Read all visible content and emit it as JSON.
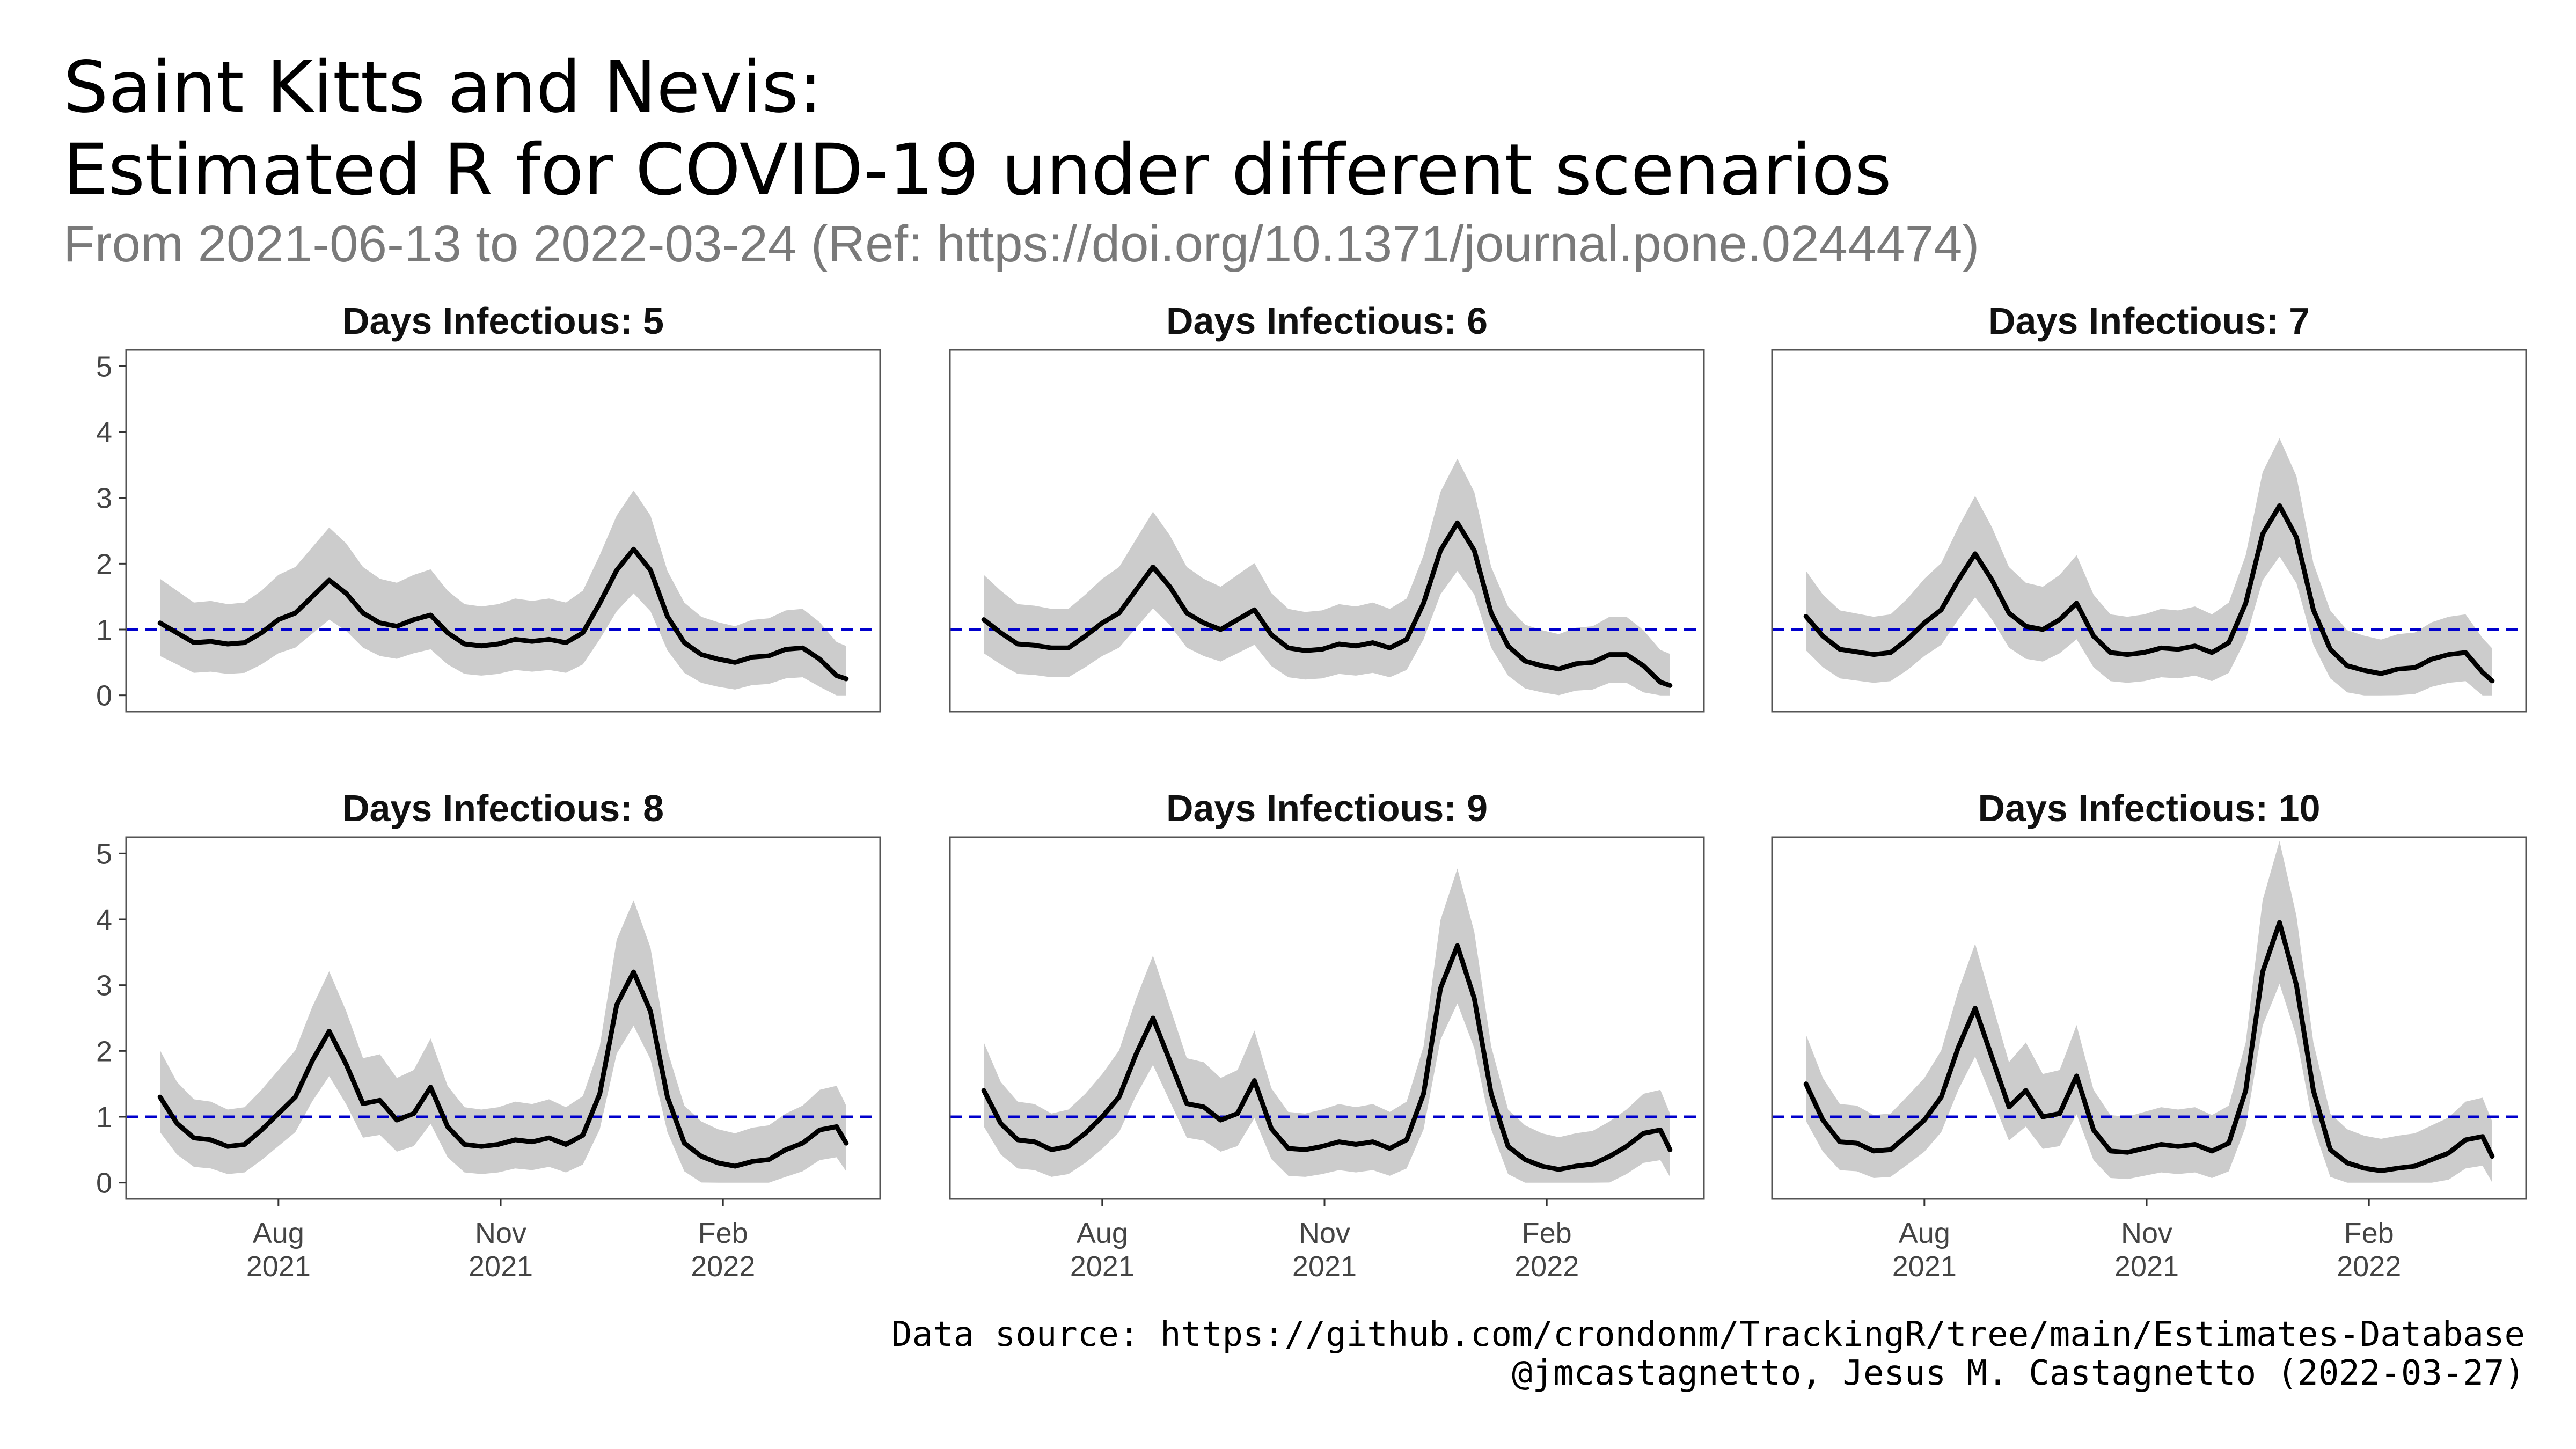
{
  "title_line1": "Saint Kitts and Nevis:",
  "title_line2": "Estimated R for COVID-19 under different scenarios",
  "subtitle": "From 2021-06-13 to 2022-03-24 (Ref: https://doi.org/10.1371/journal.pone.0244474)",
  "caption_line1": "Data source: https://github.com/crondonm/TrackingR/tree/main/Estimates-Database",
  "caption_line2": "@jmcastagnetto, Jesus M. Castagnetto (2022-03-27)",
  "colors": {
    "line": "#000000",
    "ribbon": "#cccccc",
    "reference": "#0000cc",
    "frame": "#555555"
  },
  "chart_data": {
    "type": "line",
    "x_start": "2021-06-13",
    "x_end": "2022-03-24",
    "x_ticks": [
      {
        "date": "2021-08-01",
        "label_month": "Aug",
        "label_year": "2021"
      },
      {
        "date": "2021-11-01",
        "label_month": "Nov",
        "label_year": "2021"
      },
      {
        "date": "2022-02-01",
        "label_month": "Feb",
        "label_year": "2022"
      }
    ],
    "y_ticks": [
      0,
      1,
      2,
      3,
      4,
      5
    ],
    "ylim": [
      0,
      5
    ],
    "reference_line": 1,
    "ribbon": "confidence interval",
    "panels": [
      {
        "label": "Days Infectious: 5",
        "series": [
          [
            "2021-06-13",
            1.1
          ],
          [
            "2021-06-20",
            0.95
          ],
          [
            "2021-06-27",
            0.8
          ],
          [
            "2021-07-04",
            0.82
          ],
          [
            "2021-07-11",
            0.78
          ],
          [
            "2021-07-18",
            0.8
          ],
          [
            "2021-07-25",
            0.95
          ],
          [
            "2021-08-01",
            1.15
          ],
          [
            "2021-08-08",
            1.25
          ],
          [
            "2021-08-15",
            1.5
          ],
          [
            "2021-08-22",
            1.75
          ],
          [
            "2021-08-29",
            1.55
          ],
          [
            "2021-09-05",
            1.25
          ],
          [
            "2021-09-12",
            1.1
          ],
          [
            "2021-09-19",
            1.05
          ],
          [
            "2021-09-26",
            1.15
          ],
          [
            "2021-10-03",
            1.22
          ],
          [
            "2021-10-10",
            0.95
          ],
          [
            "2021-10-17",
            0.78
          ],
          [
            "2021-10-24",
            0.75
          ],
          [
            "2021-10-31",
            0.78
          ],
          [
            "2021-11-07",
            0.85
          ],
          [
            "2021-11-14",
            0.82
          ],
          [
            "2021-11-21",
            0.85
          ],
          [
            "2021-11-28",
            0.8
          ],
          [
            "2021-12-05",
            0.95
          ],
          [
            "2021-12-12",
            1.4
          ],
          [
            "2021-12-19",
            1.9
          ],
          [
            "2021-12-26",
            2.22
          ],
          [
            "2022-01-02",
            1.9
          ],
          [
            "2022-01-09",
            1.2
          ],
          [
            "2022-01-16",
            0.8
          ],
          [
            "2022-01-23",
            0.62
          ],
          [
            "2022-01-30",
            0.55
          ],
          [
            "2022-02-06",
            0.5
          ],
          [
            "2022-02-13",
            0.58
          ],
          [
            "2022-02-20",
            0.6
          ],
          [
            "2022-02-27",
            0.7
          ],
          [
            "2022-03-06",
            0.72
          ],
          [
            "2022-03-13",
            0.55
          ],
          [
            "2022-03-20",
            0.3
          ],
          [
            "2022-03-24",
            0.25
          ]
        ]
      },
      {
        "label": "Days Infectious: 6",
        "series": [
          [
            "2021-06-13",
            1.15
          ],
          [
            "2021-06-20",
            0.95
          ],
          [
            "2021-06-27",
            0.78
          ],
          [
            "2021-07-04",
            0.76
          ],
          [
            "2021-07-11",
            0.72
          ],
          [
            "2021-07-18",
            0.72
          ],
          [
            "2021-07-25",
            0.9
          ],
          [
            "2021-08-01",
            1.1
          ],
          [
            "2021-08-08",
            1.25
          ],
          [
            "2021-08-15",
            1.6
          ],
          [
            "2021-08-22",
            1.95
          ],
          [
            "2021-08-29",
            1.65
          ],
          [
            "2021-09-05",
            1.25
          ],
          [
            "2021-09-12",
            1.1
          ],
          [
            "2021-09-19",
            1.0
          ],
          [
            "2021-09-26",
            1.15
          ],
          [
            "2021-10-03",
            1.3
          ],
          [
            "2021-10-10",
            0.92
          ],
          [
            "2021-10-17",
            0.72
          ],
          [
            "2021-10-24",
            0.68
          ],
          [
            "2021-10-31",
            0.7
          ],
          [
            "2021-11-07",
            0.78
          ],
          [
            "2021-11-14",
            0.75
          ],
          [
            "2021-11-21",
            0.8
          ],
          [
            "2021-11-28",
            0.72
          ],
          [
            "2021-12-05",
            0.85
          ],
          [
            "2021-12-12",
            1.4
          ],
          [
            "2021-12-19",
            2.2
          ],
          [
            "2021-12-26",
            2.62
          ],
          [
            "2022-01-02",
            2.2
          ],
          [
            "2022-01-09",
            1.25
          ],
          [
            "2022-01-16",
            0.75
          ],
          [
            "2022-01-23",
            0.52
          ],
          [
            "2022-01-30",
            0.45
          ],
          [
            "2022-02-06",
            0.4
          ],
          [
            "2022-02-13",
            0.48
          ],
          [
            "2022-02-20",
            0.5
          ],
          [
            "2022-02-27",
            0.62
          ],
          [
            "2022-03-06",
            0.62
          ],
          [
            "2022-03-13",
            0.45
          ],
          [
            "2022-03-20",
            0.2
          ],
          [
            "2022-03-24",
            0.15
          ]
        ]
      },
      {
        "label": "Days Infectious: 7",
        "series": [
          [
            "2021-06-13",
            1.2
          ],
          [
            "2021-06-20",
            0.9
          ],
          [
            "2021-06-27",
            0.7
          ],
          [
            "2021-07-04",
            0.66
          ],
          [
            "2021-07-11",
            0.62
          ],
          [
            "2021-07-18",
            0.65
          ],
          [
            "2021-07-25",
            0.85
          ],
          [
            "2021-08-01",
            1.1
          ],
          [
            "2021-08-08",
            1.3
          ],
          [
            "2021-08-15",
            1.75
          ],
          [
            "2021-08-22",
            2.15
          ],
          [
            "2021-08-29",
            1.75
          ],
          [
            "2021-09-05",
            1.25
          ],
          [
            "2021-09-12",
            1.05
          ],
          [
            "2021-09-19",
            1.0
          ],
          [
            "2021-09-26",
            1.15
          ],
          [
            "2021-10-03",
            1.4
          ],
          [
            "2021-10-10",
            0.9
          ],
          [
            "2021-10-17",
            0.65
          ],
          [
            "2021-10-24",
            0.62
          ],
          [
            "2021-10-31",
            0.65
          ],
          [
            "2021-11-07",
            0.72
          ],
          [
            "2021-11-14",
            0.7
          ],
          [
            "2021-11-21",
            0.75
          ],
          [
            "2021-11-28",
            0.65
          ],
          [
            "2021-12-05",
            0.8
          ],
          [
            "2021-12-12",
            1.4
          ],
          [
            "2021-12-19",
            2.45
          ],
          [
            "2021-12-26",
            2.88
          ],
          [
            "2022-01-02",
            2.4
          ],
          [
            "2022-01-09",
            1.3
          ],
          [
            "2022-01-16",
            0.7
          ],
          [
            "2022-01-23",
            0.45
          ],
          [
            "2022-01-30",
            0.38
          ],
          [
            "2022-02-06",
            0.33
          ],
          [
            "2022-02-13",
            0.4
          ],
          [
            "2022-02-20",
            0.42
          ],
          [
            "2022-02-27",
            0.55
          ],
          [
            "2022-03-06",
            0.62
          ],
          [
            "2022-03-13",
            0.65
          ],
          [
            "2022-03-20",
            0.35
          ],
          [
            "2022-03-24",
            0.22
          ]
        ]
      },
      {
        "label": "Days Infectious: 8",
        "series": [
          [
            "2021-06-13",
            1.3
          ],
          [
            "2021-06-20",
            0.9
          ],
          [
            "2021-06-27",
            0.68
          ],
          [
            "2021-07-04",
            0.65
          ],
          [
            "2021-07-11",
            0.55
          ],
          [
            "2021-07-18",
            0.58
          ],
          [
            "2021-07-25",
            0.8
          ],
          [
            "2021-08-01",
            1.05
          ],
          [
            "2021-08-08",
            1.3
          ],
          [
            "2021-08-15",
            1.85
          ],
          [
            "2021-08-22",
            2.3
          ],
          [
            "2021-08-29",
            1.8
          ],
          [
            "2021-09-05",
            1.2
          ],
          [
            "2021-09-12",
            1.25
          ],
          [
            "2021-09-19",
            0.95
          ],
          [
            "2021-09-26",
            1.05
          ],
          [
            "2021-10-03",
            1.45
          ],
          [
            "2021-10-10",
            0.85
          ],
          [
            "2021-10-17",
            0.58
          ],
          [
            "2021-10-24",
            0.55
          ],
          [
            "2021-10-31",
            0.58
          ],
          [
            "2021-11-07",
            0.65
          ],
          [
            "2021-11-14",
            0.62
          ],
          [
            "2021-11-21",
            0.68
          ],
          [
            "2021-11-28",
            0.58
          ],
          [
            "2021-12-05",
            0.72
          ],
          [
            "2021-12-12",
            1.35
          ],
          [
            "2021-12-19",
            2.7
          ],
          [
            "2021-12-26",
            3.2
          ],
          [
            "2022-01-02",
            2.6
          ],
          [
            "2022-01-09",
            1.3
          ],
          [
            "2022-01-16",
            0.6
          ],
          [
            "2022-01-23",
            0.4
          ],
          [
            "2022-01-30",
            0.3
          ],
          [
            "2022-02-06",
            0.25
          ],
          [
            "2022-02-13",
            0.32
          ],
          [
            "2022-02-20",
            0.35
          ],
          [
            "2022-02-27",
            0.5
          ],
          [
            "2022-03-06",
            0.6
          ],
          [
            "2022-03-13",
            0.8
          ],
          [
            "2022-03-20",
            0.85
          ],
          [
            "2022-03-24",
            0.6
          ]
        ]
      },
      {
        "label": "Days Infectious: 9",
        "series": [
          [
            "2021-06-13",
            1.4
          ],
          [
            "2021-06-20",
            0.9
          ],
          [
            "2021-06-27",
            0.65
          ],
          [
            "2021-07-04",
            0.62
          ],
          [
            "2021-07-11",
            0.5
          ],
          [
            "2021-07-18",
            0.55
          ],
          [
            "2021-07-25",
            0.75
          ],
          [
            "2021-08-01",
            1.0
          ],
          [
            "2021-08-08",
            1.3
          ],
          [
            "2021-08-15",
            1.95
          ],
          [
            "2021-08-22",
            2.5
          ],
          [
            "2021-08-29",
            1.85
          ],
          [
            "2021-09-05",
            1.2
          ],
          [
            "2021-09-12",
            1.15
          ],
          [
            "2021-09-19",
            0.95
          ],
          [
            "2021-09-26",
            1.05
          ],
          [
            "2021-10-03",
            1.55
          ],
          [
            "2021-10-10",
            0.82
          ],
          [
            "2021-10-17",
            0.52
          ],
          [
            "2021-10-24",
            0.5
          ],
          [
            "2021-10-31",
            0.55
          ],
          [
            "2021-11-07",
            0.62
          ],
          [
            "2021-11-14",
            0.58
          ],
          [
            "2021-11-21",
            0.62
          ],
          [
            "2021-11-28",
            0.52
          ],
          [
            "2021-12-05",
            0.65
          ],
          [
            "2021-12-12",
            1.35
          ],
          [
            "2021-12-19",
            2.95
          ],
          [
            "2021-12-26",
            3.6
          ],
          [
            "2022-01-02",
            2.8
          ],
          [
            "2022-01-09",
            1.35
          ],
          [
            "2022-01-16",
            0.55
          ],
          [
            "2022-01-23",
            0.35
          ],
          [
            "2022-01-30",
            0.25
          ],
          [
            "2022-02-06",
            0.2
          ],
          [
            "2022-02-13",
            0.25
          ],
          [
            "2022-02-20",
            0.28
          ],
          [
            "2022-02-27",
            0.4
          ],
          [
            "2022-03-06",
            0.55
          ],
          [
            "2022-03-13",
            0.75
          ],
          [
            "2022-03-20",
            0.8
          ],
          [
            "2022-03-24",
            0.5
          ]
        ]
      },
      {
        "label": "Days Infectious: 10",
        "series": [
          [
            "2021-06-13",
            1.5
          ],
          [
            "2021-06-20",
            0.95
          ],
          [
            "2021-06-27",
            0.62
          ],
          [
            "2021-07-04",
            0.6
          ],
          [
            "2021-07-11",
            0.48
          ],
          [
            "2021-07-18",
            0.5
          ],
          [
            "2021-07-25",
            0.72
          ],
          [
            "2021-08-01",
            0.95
          ],
          [
            "2021-08-08",
            1.3
          ],
          [
            "2021-08-15",
            2.05
          ],
          [
            "2021-08-22",
            2.65
          ],
          [
            "2021-08-29",
            1.9
          ],
          [
            "2021-09-05",
            1.15
          ],
          [
            "2021-09-12",
            1.4
          ],
          [
            "2021-09-19",
            1.0
          ],
          [
            "2021-09-26",
            1.05
          ],
          [
            "2021-10-03",
            1.62
          ],
          [
            "2021-10-10",
            0.8
          ],
          [
            "2021-10-17",
            0.48
          ],
          [
            "2021-10-24",
            0.46
          ],
          [
            "2021-10-31",
            0.52
          ],
          [
            "2021-11-07",
            0.58
          ],
          [
            "2021-11-14",
            0.55
          ],
          [
            "2021-11-21",
            0.58
          ],
          [
            "2021-11-28",
            0.48
          ],
          [
            "2021-12-05",
            0.6
          ],
          [
            "2021-12-12",
            1.4
          ],
          [
            "2021-12-19",
            3.2
          ],
          [
            "2021-12-26",
            3.95
          ],
          [
            "2022-01-02",
            3.0
          ],
          [
            "2022-01-09",
            1.4
          ],
          [
            "2022-01-16",
            0.5
          ],
          [
            "2022-01-23",
            0.3
          ],
          [
            "2022-01-30",
            0.22
          ],
          [
            "2022-02-06",
            0.18
          ],
          [
            "2022-02-13",
            0.22
          ],
          [
            "2022-02-20",
            0.25
          ],
          [
            "2022-02-27",
            0.35
          ],
          [
            "2022-03-06",
            0.45
          ],
          [
            "2022-03-13",
            0.65
          ],
          [
            "2022-03-20",
            0.7
          ],
          [
            "2022-03-24",
            0.4
          ]
        ]
      }
    ]
  }
}
